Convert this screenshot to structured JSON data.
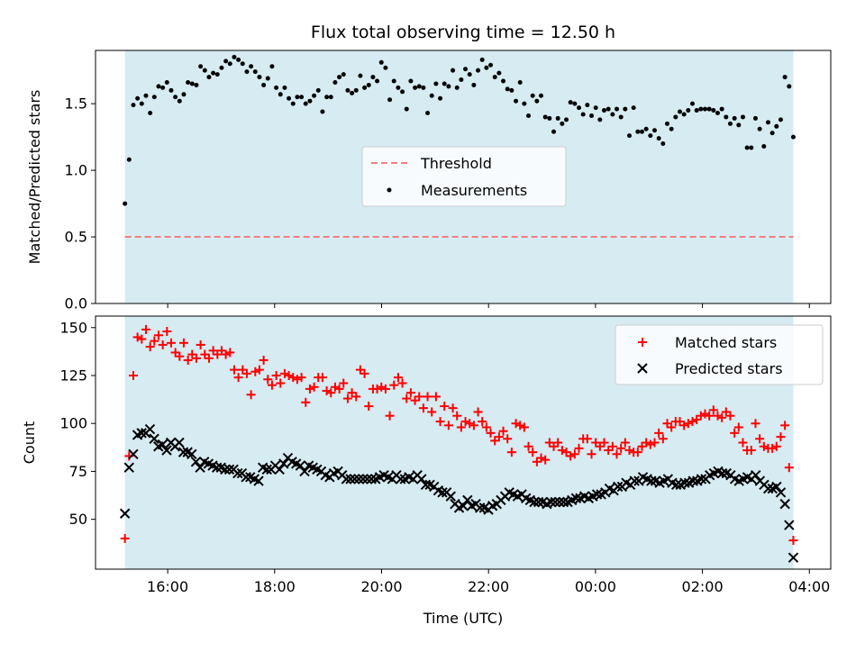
{
  "chart_data": [
    {
      "type": "scatter",
      "title": "Flux total observing time = 12.50 h",
      "xlabel": "",
      "ylabel": "Matched/Predicted stars",
      "x_unit": "hours (UTC, continuing past midnight)",
      "xlim": [
        14.65,
        28.4
      ],
      "ylim": [
        0.0,
        1.9
      ],
      "yticks": [
        "0.0",
        "0.5",
        "1.0",
        "1.5"
      ],
      "ytick_values": [
        0.0,
        0.5,
        1.0,
        1.5
      ],
      "shaded_span": [
        15.2,
        27.7
      ],
      "shaded_color": "#add8e6",
      "grid": false,
      "legend_position": "center",
      "series": [
        {
          "name": "Threshold",
          "kind": "hline",
          "value": 0.5,
          "x_range": [
            15.2,
            27.7
          ],
          "color": "#f08080",
          "style": "dashed"
        },
        {
          "name": "Measurements",
          "kind": "scatter",
          "color": "#000000",
          "x_start": 15.2,
          "x_end": 27.7,
          "y": [
            0.75,
            1.08,
            1.49,
            1.54,
            1.5,
            1.56,
            1.43,
            1.55,
            1.63,
            1.62,
            1.66,
            1.6,
            1.55,
            1.52,
            1.57,
            1.66,
            1.65,
            1.64,
            1.78,
            1.75,
            1.7,
            1.73,
            1.72,
            1.77,
            1.82,
            1.8,
            1.85,
            1.83,
            1.8,
            1.74,
            1.78,
            1.74,
            1.7,
            1.64,
            1.69,
            1.78,
            1.62,
            1.57,
            1.62,
            1.54,
            1.5,
            1.55,
            1.55,
            1.5,
            1.52,
            1.56,
            1.6,
            1.44,
            1.55,
            1.55,
            1.66,
            1.7,
            1.72,
            1.6,
            1.58,
            1.6,
            1.71,
            1.62,
            1.64,
            1.7,
            1.67,
            1.81,
            1.77,
            1.53,
            1.67,
            1.62,
            1.59,
            1.46,
            1.67,
            1.62,
            1.63,
            1.62,
            1.43,
            1.56,
            1.65,
            1.54,
            1.65,
            1.63,
            1.75,
            1.62,
            1.68,
            1.76,
            1.72,
            1.64,
            1.75,
            1.83,
            1.77,
            1.79,
            1.7,
            1.73,
            1.67,
            1.61,
            1.6,
            1.52,
            1.66,
            1.5,
            1.41,
            1.56,
            1.52,
            1.56,
            1.4,
            1.39,
            1.29,
            1.39,
            1.35,
            1.38,
            1.51,
            1.5,
            1.47,
            1.42,
            1.49,
            1.41,
            1.47,
            1.38,
            1.45,
            1.46,
            1.42,
            1.46,
            1.4,
            1.46,
            1.26,
            1.47,
            1.29,
            1.29,
            1.31,
            1.26,
            1.3,
            1.24,
            1.2,
            1.35,
            1.31,
            1.4,
            1.44,
            1.42,
            1.45,
            1.5,
            1.45,
            1.46,
            1.46,
            1.46,
            1.45,
            1.43,
            1.46,
            1.4,
            1.35,
            1.39,
            1.34,
            1.4,
            1.17,
            1.17,
            1.39,
            1.31,
            1.18,
            1.36,
            1.28,
            1.33,
            1.38,
            1.7,
            1.63,
            1.25
          ]
        }
      ]
    },
    {
      "type": "scatter",
      "title": "",
      "xlabel": "Time (UTC)",
      "ylabel": "Count",
      "x_unit": "hours (UTC, continuing past midnight)",
      "xlim": [
        14.65,
        28.4
      ],
      "ylim": [
        24,
        156
      ],
      "xticks": [
        "16:00",
        "18:00",
        "20:00",
        "22:00",
        "00:00",
        "02:00",
        "04:00"
      ],
      "xtick_values": [
        16,
        18,
        20,
        22,
        24,
        26,
        28
      ],
      "yticks": [
        "50",
        "75",
        "100",
        "125",
        "150"
      ],
      "ytick_values": [
        50,
        75,
        100,
        125,
        150
      ],
      "shaded_span": [
        15.2,
        27.7
      ],
      "shaded_color": "#add8e6",
      "grid": false,
      "legend_position": "top-right",
      "series": [
        {
          "name": "Matched stars",
          "kind": "scatter",
          "marker": "plus",
          "color": "#ff0000",
          "x_start": 15.2,
          "x_end": 27.7,
          "y": [
            40,
            83,
            125,
            145,
            144,
            149,
            140,
            143,
            146,
            141,
            148,
            142,
            137,
            135,
            142,
            133,
            136,
            134,
            141,
            136,
            134,
            138,
            136,
            138,
            136,
            137,
            128,
            124,
            128,
            126,
            115,
            127,
            128,
            133,
            123,
            120,
            125,
            121,
            126,
            125,
            124,
            123,
            124,
            111,
            118,
            119,
            124,
            124,
            117,
            116,
            119,
            118,
            121,
            113,
            116,
            114,
            128,
            126,
            109,
            118,
            118,
            119,
            118,
            104,
            120,
            124,
            121,
            113,
            116,
            112,
            114,
            108,
            114,
            106,
            114,
            101,
            109,
            99,
            108,
            104,
            98,
            101,
            100,
            99,
            106,
            101,
            98,
            95,
            91,
            93,
            96,
            92,
            85,
            100,
            99,
            98,
            88,
            85,
            80,
            82,
            81,
            90,
            88,
            90,
            86,
            85,
            83,
            84,
            87,
            92,
            92,
            84,
            90,
            88,
            90,
            86,
            88,
            84,
            87,
            90,
            86,
            85,
            85,
            88,
            90,
            89,
            90,
            95,
            92,
            100,
            98,
            101,
            101,
            99,
            100,
            101,
            102,
            104,
            105,
            104,
            107,
            104,
            103,
            106,
            104,
            95,
            98,
            90,
            86,
            86,
            100,
            92,
            88,
            87,
            87,
            88,
            93,
            99,
            77,
            39
          ]
        },
        {
          "name": "Predicted stars",
          "kind": "scatter",
          "marker": "x",
          "color": "#000000",
          "x_start": 15.2,
          "x_end": 27.7,
          "y": [
            53,
            77,
            84,
            94,
            95,
            95,
            97,
            92,
            88,
            89,
            86,
            90,
            88,
            90,
            85,
            85,
            84,
            80,
            77,
            80,
            79,
            78,
            77,
            77,
            76,
            76,
            76,
            74,
            74,
            72,
            72,
            71,
            70,
            77,
            76,
            76,
            78,
            76,
            79,
            82,
            80,
            79,
            78,
            75,
            78,
            77,
            76,
            75,
            73,
            72,
            74,
            75,
            73,
            71,
            71,
            71,
            71,
            71,
            71,
            71,
            71,
            72,
            73,
            72,
            71,
            73,
            71,
            71,
            72,
            71,
            73,
            71,
            68,
            68,
            67,
            65,
            64,
            64,
            62,
            58,
            56,
            57,
            60,
            57,
            58,
            56,
            56,
            55,
            57,
            58,
            60,
            62,
            64,
            63,
            62,
            63,
            61,
            60,
            59,
            59,
            59,
            58,
            59,
            59,
            59,
            59,
            59,
            60,
            61,
            61,
            62,
            61,
            62,
            63,
            63,
            64,
            66,
            65,
            67,
            67,
            69,
            68,
            70,
            70,
            72,
            71,
            70,
            70,
            69,
            70,
            71,
            69,
            68,
            68,
            69,
            69,
            70,
            70,
            71,
            71,
            73,
            74,
            75,
            74,
            74,
            73,
            71,
            70,
            71,
            72,
            71,
            73,
            70,
            68,
            66,
            66,
            67,
            64,
            58,
            47,
            30
          ]
        }
      ]
    }
  ]
}
